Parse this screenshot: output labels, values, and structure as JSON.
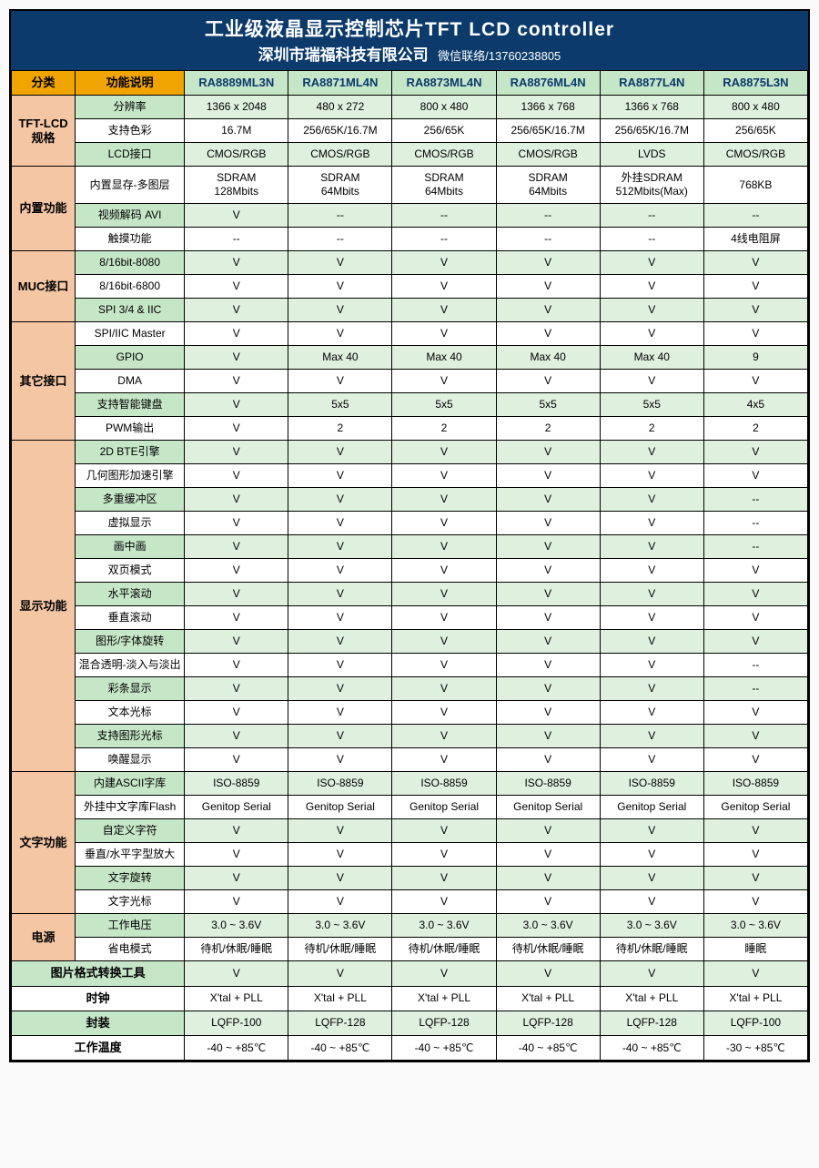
{
  "title": {
    "main": "工业级液晶显示控制芯片TFT LCD controller",
    "company": "深圳市瑞福科技有限公司",
    "contact": "微信联络/13760238805"
  },
  "headers": {
    "category": "分类",
    "feature": "功能说明",
    "chips": [
      "RA8889ML3N",
      "RA8871ML4N",
      "RA8873ML4N",
      "RA8876ML4N",
      "RA8877L4N",
      "RA8875L3N"
    ]
  },
  "groups": [
    {
      "name": "TFT-LCD\n规格",
      "rows": [
        {
          "feature": "分辨率",
          "vals": [
            "1366 x 2048",
            "480 x 272",
            "800 x 480",
            "1366 x 768",
            "1366 x 768",
            "800 x 480"
          ]
        },
        {
          "feature": "支持色彩",
          "vals": [
            "16.7M",
            "256/65K/16.7M",
            "256/65K",
            "256/65K/16.7M",
            "256/65K/16.7M",
            "256/65K"
          ]
        },
        {
          "feature": "LCD接口",
          "vals": [
            "CMOS/RGB",
            "CMOS/RGB",
            "CMOS/RGB",
            "CMOS/RGB",
            "LVDS",
            "CMOS/RGB"
          ]
        }
      ]
    },
    {
      "name": "内置功能",
      "rows": [
        {
          "feature": "内置显存-多图层",
          "vals": [
            "SDRAM\n128Mbits",
            "SDRAM\n64Mbits",
            "SDRAM\n64Mbits",
            "SDRAM\n64Mbits",
            "外挂SDRAM\n512Mbits(Max)",
            "768KB"
          ]
        },
        {
          "feature": "视频解码 AVI",
          "vals": [
            "V",
            "--",
            "--",
            "--",
            "--",
            "--"
          ]
        },
        {
          "feature": "触摸功能",
          "vals": [
            "--",
            "--",
            "--",
            "--",
            "--",
            "4线电阻屏"
          ]
        }
      ]
    },
    {
      "name": "MUC接口",
      "rows": [
        {
          "feature": "8/16bit-8080",
          "vals": [
            "V",
            "V",
            "V",
            "V",
            "V",
            "V"
          ]
        },
        {
          "feature": "8/16bit-6800",
          "vals": [
            "V",
            "V",
            "V",
            "V",
            "V",
            "V"
          ]
        },
        {
          "feature": "SPI 3/4 & IIC",
          "vals": [
            "V",
            "V",
            "V",
            "V",
            "V",
            "V"
          ]
        }
      ]
    },
    {
      "name": "其它接口",
      "rows": [
        {
          "feature": "SPI/IIC Master",
          "vals": [
            "V",
            "V",
            "V",
            "V",
            "V",
            "V"
          ]
        },
        {
          "feature": "GPIO",
          "vals": [
            "V",
            "Max 40",
            "Max 40",
            "Max 40",
            "Max 40",
            "9"
          ]
        },
        {
          "feature": "DMA",
          "vals": [
            "V",
            "V",
            "V",
            "V",
            "V",
            "V"
          ]
        },
        {
          "feature": "支持智能键盘",
          "vals": [
            "V",
            "5x5",
            "5x5",
            "5x5",
            "5x5",
            "4x5"
          ]
        },
        {
          "feature": "PWM输出",
          "vals": [
            "V",
            "2",
            "2",
            "2",
            "2",
            "2"
          ]
        }
      ]
    },
    {
      "name": "显示功能",
      "rows": [
        {
          "feature": "2D BTE引擎",
          "vals": [
            "V",
            "V",
            "V",
            "V",
            "V",
            "V"
          ]
        },
        {
          "feature": "几何图形加速引擎",
          "vals": [
            "V",
            "V",
            "V",
            "V",
            "V",
            "V"
          ]
        },
        {
          "feature": "多重缓冲区",
          "vals": [
            "V",
            "V",
            "V",
            "V",
            "V",
            "--"
          ]
        },
        {
          "feature": "虚拟显示",
          "vals": [
            "V",
            "V",
            "V",
            "V",
            "V",
            "--"
          ]
        },
        {
          "feature": "画中画",
          "vals": [
            "V",
            "V",
            "V",
            "V",
            "V",
            "--"
          ]
        },
        {
          "feature": "双页模式",
          "vals": [
            "V",
            "V",
            "V",
            "V",
            "V",
            "V"
          ]
        },
        {
          "feature": "水平滚动",
          "vals": [
            "V",
            "V",
            "V",
            "V",
            "V",
            "V"
          ]
        },
        {
          "feature": "垂直滚动",
          "vals": [
            "V",
            "V",
            "V",
            "V",
            "V",
            "V"
          ]
        },
        {
          "feature": "图形/字体旋转",
          "vals": [
            "V",
            "V",
            "V",
            "V",
            "V",
            "V"
          ]
        },
        {
          "feature": "混合透明-淡入与淡出",
          "vals": [
            "V",
            "V",
            "V",
            "V",
            "V",
            "--"
          ]
        },
        {
          "feature": "彩条显示",
          "vals": [
            "V",
            "V",
            "V",
            "V",
            "V",
            "--"
          ]
        },
        {
          "feature": "文本光标",
          "vals": [
            "V",
            "V",
            "V",
            "V",
            "V",
            "V"
          ]
        },
        {
          "feature": "支持图形光标",
          "vals": [
            "V",
            "V",
            "V",
            "V",
            "V",
            "V"
          ]
        },
        {
          "feature": "唤醒显示",
          "vals": [
            "V",
            "V",
            "V",
            "V",
            "V",
            "V"
          ]
        }
      ]
    },
    {
      "name": "文字功能",
      "rows": [
        {
          "feature": "内建ASCII字库",
          "vals": [
            "ISO-8859",
            "ISO-8859",
            "ISO-8859",
            "ISO-8859",
            "ISO-8859",
            "ISO-8859"
          ]
        },
        {
          "feature": "外挂中文字库Flash",
          "vals": [
            "Genitop Serial",
            "Genitop Serial",
            "Genitop Serial",
            "Genitop Serial",
            "Genitop Serial",
            "Genitop Serial"
          ]
        },
        {
          "feature": "自定义字符",
          "vals": [
            "V",
            "V",
            "V",
            "V",
            "V",
            "V"
          ]
        },
        {
          "feature": "垂直/水平字型放大",
          "vals": [
            "V",
            "V",
            "V",
            "V",
            "V",
            "V"
          ]
        },
        {
          "feature": "文字旋转",
          "vals": [
            "V",
            "V",
            "V",
            "V",
            "V",
            "V"
          ]
        },
        {
          "feature": "文字光标",
          "vals": [
            "V",
            "V",
            "V",
            "V",
            "V",
            "V"
          ]
        }
      ]
    },
    {
      "name": "电源",
      "rows": [
        {
          "feature": "工作电压",
          "vals": [
            "3.0 ~ 3.6V",
            "3.0 ~ 3.6V",
            "3.0 ~ 3.6V",
            "3.0 ~ 3.6V",
            "3.0 ~ 3.6V",
            "3.0 ~ 3.6V"
          ]
        },
        {
          "feature": "省电模式",
          "vals": [
            "待机/休眠/睡眠",
            "待机/休眠/睡眠",
            "待机/休眠/睡眠",
            "待机/休眠/睡眠",
            "待机/休眠/睡眠",
            "睡眠"
          ]
        }
      ]
    }
  ],
  "footer_rows": [
    {
      "feature": "图片格式转换工具",
      "vals": [
        "V",
        "V",
        "V",
        "V",
        "V",
        "V"
      ]
    },
    {
      "feature": "时钟",
      "vals": [
        "X'tal + PLL",
        "X'tal + PLL",
        "X'tal + PLL",
        "X'tal + PLL",
        "X'tal + PLL",
        "X'tal + PLL"
      ]
    },
    {
      "feature": "封装",
      "vals": [
        "LQFP-100",
        "LQFP-128",
        "LQFP-128",
        "LQFP-128",
        "LQFP-128",
        "LQFP-100"
      ]
    },
    {
      "feature": "工作温度",
      "vals": [
        "-40 ~ +85℃",
        "-40 ~ +85℃",
        "-40 ~ +85℃",
        "-40 ~ +85℃",
        "-40 ~ +85℃",
        "-30 ~ +85℃"
      ]
    }
  ],
  "colors": {
    "title_bg": "#0b3a6b",
    "orange": "#f0a400",
    "peach": "#f4c6a4",
    "green_hdr": "#c6e6c8",
    "green_val": "#dff0df",
    "white": "#ffffff"
  }
}
